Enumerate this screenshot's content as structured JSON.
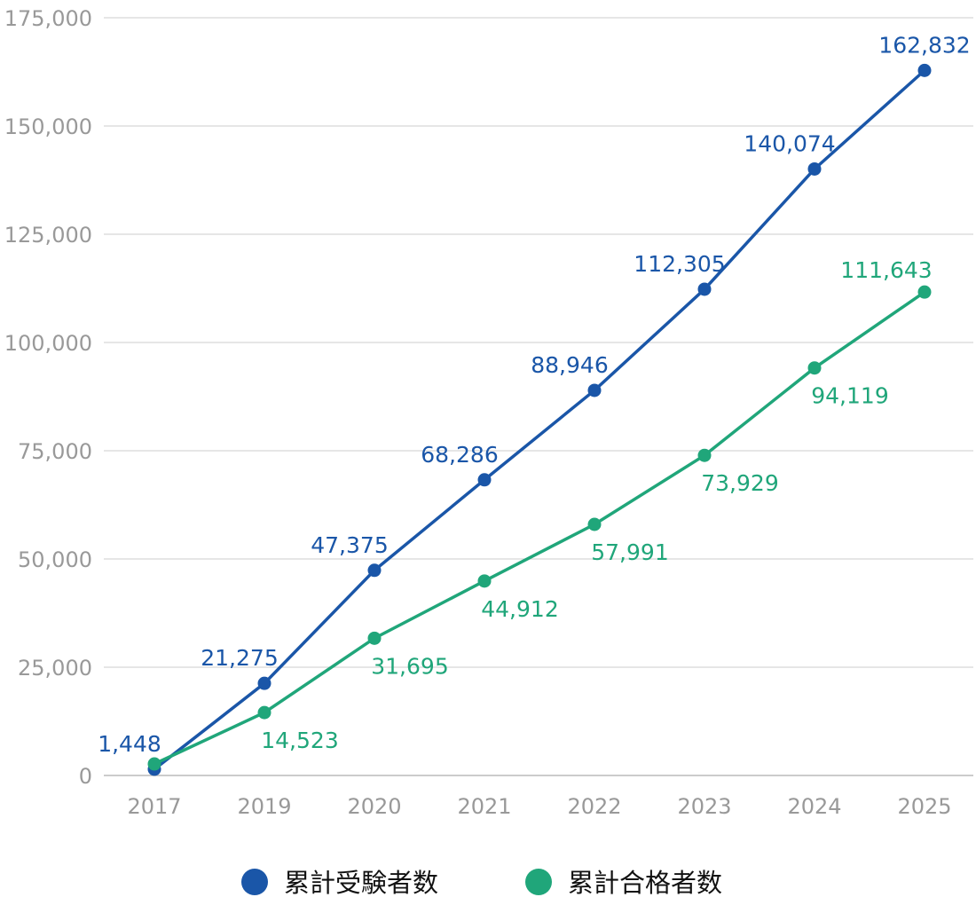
{
  "chart_data": {
    "type": "line",
    "title": "",
    "xlabel": "",
    "ylabel": "",
    "categories": [
      "2017",
      "2019",
      "2020",
      "2021",
      "2022",
      "2023",
      "2024",
      "2025"
    ],
    "ylim": [
      0,
      175000
    ],
    "yticks": [
      0,
      25000,
      50000,
      75000,
      100000,
      125000,
      150000,
      175000
    ],
    "ytick_labels": [
      "0",
      "25,000",
      "50,000",
      "75,000",
      "100,000",
      "125,000",
      "150,000",
      "175,000"
    ],
    "grid": true,
    "legend_position": "bottom-center",
    "series": [
      {
        "name": "累計受験者数",
        "color": "#1a56a8",
        "label_pos": "above",
        "values": [
          1448,
          21275,
          47375,
          68286,
          88946,
          112305,
          140074,
          162832
        ],
        "labels": [
          "1,448",
          "21,275",
          "47,375",
          "68,286",
          "88,946",
          "112,305",
          "140,074",
          "162,832"
        ]
      },
      {
        "name": "累計合格者数",
        "color": "#20a67a",
        "label_pos": "below",
        "values": [
          2660,
          14523,
          31695,
          44912,
          57991,
          73929,
          94119,
          111643
        ],
        "labels": [
          null,
          "14,523",
          "31,695",
          "44,912",
          "57,991",
          "73,929",
          "94,119",
          "111,643"
        ]
      }
    ]
  }
}
